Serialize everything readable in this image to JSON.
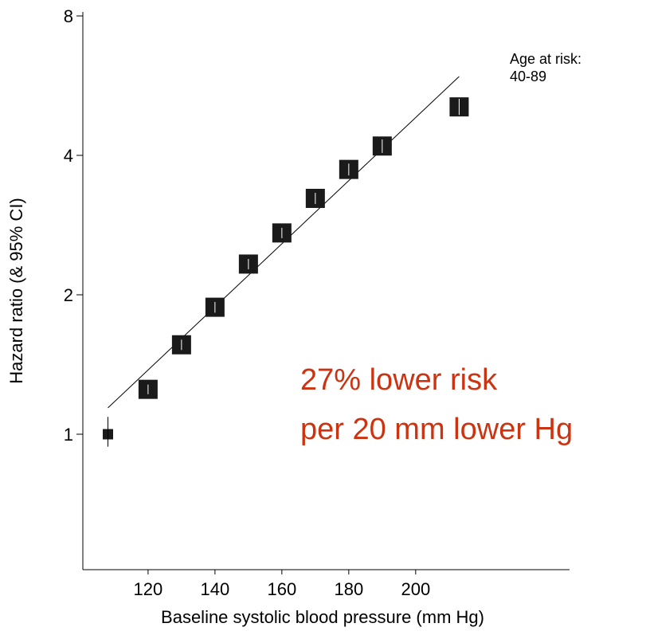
{
  "chart_data": {
    "type": "scatter",
    "title_lines": null,
    "x_label": "Baseline systolic blood pressure (mm Hg)",
    "y_label": "Hazard ratio (& 95% CI)",
    "x": [
      108,
      120,
      130,
      140,
      150,
      160,
      170,
      180,
      190,
      213
    ],
    "values": [
      1.0,
      1.25,
      1.56,
      1.88,
      2.33,
      2.72,
      3.23,
      3.73,
      4.19,
      5.09
    ],
    "lower": [
      0.94,
      1.22,
      1.52,
      1.83,
      2.27,
      2.65,
      3.14,
      3.62,
      4.05,
      4.89
    ],
    "upper": [
      1.09,
      1.28,
      1.6,
      1.93,
      2.39,
      2.79,
      3.32,
      3.84,
      4.33,
      5.3
    ],
    "color": "#1a1a1a",
    "fit": {
      "x": [
        108,
        213
      ],
      "values": [
        1.14,
        5.92
      ]
    },
    "xlim": [
      100.5,
      246
    ],
    "ylim": [
      0.51,
      8.16
    ],
    "y_scale": "log",
    "xticks": [
      120,
      140,
      160,
      180,
      200
    ],
    "yticks": [
      1,
      2,
      4,
      8
    ],
    "annotation": [
      "Age at risk:",
      "40-89"
    ],
    "highlight": [
      "27% lower risk",
      "per 20 mm lower Hg"
    ],
    "highlight_color": "#cc3311"
  }
}
